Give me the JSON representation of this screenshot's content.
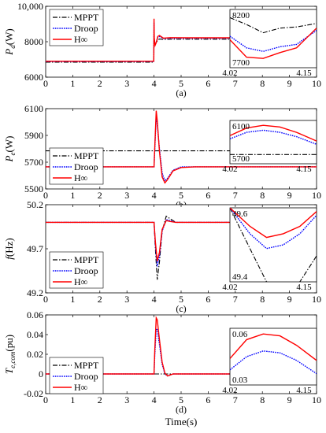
{
  "x_axis": {
    "label": "Time(s)",
    "ticks": [
      "0",
      "1",
      "2",
      "3",
      "4",
      "5",
      "6",
      "7",
      "8",
      "9",
      "10"
    ]
  },
  "chart_data": [
    {
      "type": "line",
      "panel_label": "(a)",
      "ylabel": "P_d(W)",
      "ylabel_main": "P",
      "ylabel_sub": "d",
      "ylabel_tail": "(W)",
      "xlim": [
        0,
        10
      ],
      "ylim": [
        6000,
        10000
      ],
      "yticks": [
        "6000",
        "8000",
        "10,000"
      ],
      "ytick_values": [
        6000,
        8000,
        10000
      ],
      "legend": {
        "placement": "top-left",
        "entries": [
          "MPPT",
          "Droop",
          "H∞"
        ]
      },
      "series": [
        {
          "name": "MPPT",
          "style": "dash-dot",
          "color": "#000000",
          "x": [
            0,
            3.99,
            4.0,
            4.01,
            4.04,
            4.08,
            4.14,
            4.2,
            4.35,
            4.6,
            5.2,
            10
          ],
          "y": [
            6850,
            6850,
            8500,
            8000,
            7880,
            7950,
            8100,
            8150,
            8130,
            8140,
            8140,
            8140
          ]
        },
        {
          "name": "Droop",
          "style": "dotted",
          "color": "#0000ff",
          "x": [
            0,
            3.99,
            4.0,
            4.01,
            4.04,
            4.08,
            4.14,
            4.2,
            4.35,
            4.6,
            5.2,
            10
          ],
          "y": [
            6880,
            6880,
            9100,
            8150,
            7850,
            7950,
            8250,
            8300,
            8180,
            8200,
            8200,
            8200
          ]
        },
        {
          "name": "H∞",
          "style": "solid",
          "color": "#ff0000",
          "x": [
            0,
            3.99,
            4.0,
            4.01,
            4.04,
            4.08,
            4.14,
            4.2,
            4.35,
            4.6,
            5.2,
            10
          ],
          "y": [
            6900,
            6900,
            9300,
            8200,
            7800,
            7950,
            8300,
            8350,
            8200,
            8230,
            8220,
            8220
          ]
        }
      ],
      "inset": {
        "xlim_labels": [
          "4.02",
          "4.15"
        ],
        "ylim_labels": [
          "7700",
          "8200"
        ],
        "xlim": [
          4.02,
          4.15
        ],
        "ylim": [
          7700,
          8200
        ],
        "series": [
          {
            "name": "MPPT",
            "x": [
              4.02,
              4.045,
              4.07,
              4.095,
              4.12,
              4.15
            ],
            "y": [
              8130,
              8070,
              8000,
              8040,
              8050,
              8080
            ]
          },
          {
            "name": "Droop",
            "x": [
              4.02,
              4.045,
              4.07,
              4.095,
              4.12,
              4.15
            ],
            "y": [
              7970,
              7870,
              7840,
              7880,
              7900,
              8020
            ]
          },
          {
            "name": "H∞",
            "x": [
              4.02,
              4.045,
              4.07,
              4.095,
              4.12,
              4.15
            ],
            "y": [
              7940,
              7790,
              7780,
              7830,
              7870,
              8040
            ]
          }
        ]
      }
    },
    {
      "type": "line",
      "panel_label": "(b)",
      "ylabel": "P_e(W)",
      "ylabel_main": "P",
      "ylabel_sub": "e",
      "ylabel_tail": "(W)",
      "xlim": [
        0,
        10
      ],
      "ylim": [
        5500,
        6100
      ],
      "yticks": [
        "5500",
        "5700",
        "5900",
        "6100"
      ],
      "ytick_values": [
        5500,
        5700,
        5900,
        6100
      ],
      "legend": {
        "placement": "top-left",
        "entries": [
          "MPPT",
          "Droop",
          "H∞"
        ]
      },
      "series": [
        {
          "name": "MPPT",
          "style": "dash-dot",
          "color": "#000000",
          "x": [
            0,
            10
          ],
          "y": [
            5785,
            5785
          ]
        },
        {
          "name": "Droop",
          "style": "dotted",
          "color": "#0000ff",
          "x": [
            0,
            4.0,
            4.03,
            4.08,
            4.12,
            4.2,
            4.3,
            4.4,
            4.5,
            4.7,
            5.0,
            5.5,
            6.0,
            10
          ],
          "y": [
            5665,
            5665,
            5800,
            6050,
            5980,
            5800,
            5620,
            5560,
            5580,
            5640,
            5665,
            5665,
            5665,
            5665
          ]
        },
        {
          "name": "H∞",
          "style": "solid",
          "color": "#ff0000",
          "x": [
            0,
            4.0,
            4.03,
            4.08,
            4.12,
            4.2,
            4.3,
            4.4,
            4.5,
            4.7,
            5.0,
            5.5,
            6.0,
            10
          ],
          "y": [
            5665,
            5665,
            5820,
            6085,
            6010,
            5780,
            5590,
            5545,
            5570,
            5635,
            5660,
            5665,
            5665,
            5665
          ]
        }
      ],
      "inset": {
        "xlim_labels": [
          "4.02",
          "4.15"
        ],
        "ylim_labels": [
          "5700",
          "6100"
        ],
        "xlim": [
          4.02,
          4.15
        ],
        "ylim": [
          5700,
          6100
        ],
        "series": [
          {
            "name": "MPPT",
            "x": [
              4.02,
              4.15
            ],
            "y": [
              5785,
              5785
            ]
          },
          {
            "name": "Droop",
            "x": [
              4.02,
              4.045,
              4.07,
              4.095,
              4.12,
              4.15
            ],
            "y": [
              5930,
              5990,
              6010,
              5990,
              5950,
              5880
            ]
          },
          {
            "name": "H∞",
            "x": [
              4.02,
              4.045,
              4.07,
              4.095,
              4.12,
              4.15
            ],
            "y": [
              5960,
              6030,
              6055,
              6040,
              5990,
              5910
            ]
          }
        ]
      }
    },
    {
      "type": "line",
      "panel_label": "(c)",
      "ylabel": "f(Hz)",
      "ylabel_main": "f",
      "ylabel_sub": "",
      "ylabel_tail": "(Hz)",
      "xlim": [
        0,
        10
      ],
      "ylim": [
        49.2,
        50.2
      ],
      "yticks": [
        "49.2",
        "49.7",
        "50.2"
      ],
      "ytick_values": [
        49.2,
        49.7,
        50.2
      ],
      "legend": {
        "placement": "bottom-left",
        "entries": [
          "MPPT",
          "Droop",
          "H∞"
        ]
      },
      "series": [
        {
          "name": "MPPT",
          "style": "dash-dot",
          "color": "#000000",
          "x": [
            0,
            4.0,
            4.05,
            4.12,
            4.2,
            4.3,
            4.45,
            4.6,
            4.8,
            5.0,
            10
          ],
          "y": [
            50.0,
            50.0,
            49.7,
            49.35,
            49.55,
            49.9,
            50.07,
            50.04,
            50.0,
            50.0,
            50.0
          ]
        },
        {
          "name": "Droop",
          "style": "dotted",
          "color": "#0000ff",
          "x": [
            0,
            4.0,
            4.05,
            4.12,
            4.2,
            4.3,
            4.45,
            4.6,
            4.8,
            5.0,
            10
          ],
          "y": [
            50.0,
            50.0,
            49.75,
            49.5,
            49.62,
            49.9,
            50.03,
            50.02,
            50.0,
            50.0,
            50.0
          ]
        },
        {
          "name": "H∞",
          "style": "solid",
          "color": "#ff0000",
          "x": [
            0,
            4.0,
            4.05,
            4.12,
            4.2,
            4.3,
            4.45,
            4.6,
            4.8,
            5.0,
            10
          ],
          "y": [
            50.0,
            50.0,
            49.78,
            49.56,
            49.66,
            49.92,
            50.02,
            50.01,
            50.0,
            50.0,
            50.0
          ]
        }
      ],
      "inset": {
        "xlim_labels": [
          "4.02",
          "4.15"
        ],
        "ylim_labels": [
          "49.4",
          "49.6"
        ],
        "xlim": [
          4.02,
          4.15
        ],
        "ylim": [
          49.4,
          49.6
        ],
        "series": [
          {
            "name": "MPPT",
            "x": [
              4.02,
              4.05,
              4.075,
              4.1,
              4.125,
              4.15
            ],
            "y": [
              49.6,
              49.49,
              49.4,
              49.38,
              49.4,
              49.47
            ]
          },
          {
            "name": "Droop",
            "x": [
              4.02,
              4.05,
              4.075,
              4.1,
              4.125,
              4.15
            ],
            "y": [
              49.6,
              49.53,
              49.49,
              49.5,
              49.53,
              49.58
            ]
          },
          {
            "name": "H∞",
            "x": [
              4.02,
              4.05,
              4.075,
              4.1,
              4.125,
              4.15
            ],
            "y": [
              49.6,
              49.55,
              49.52,
              49.53,
              49.55,
              49.59
            ]
          }
        ]
      }
    },
    {
      "type": "line",
      "panel_label": "(d)",
      "ylabel": "T_e,com(pu)",
      "ylabel_main": "T",
      "ylabel_sub": "e,com",
      "ylabel_tail": "(pu)",
      "xlim": [
        0,
        10
      ],
      "ylim": [
        -0.02,
        0.06
      ],
      "yticks": [
        "-0.02",
        "0",
        "0.02",
        "0.04",
        "0.06"
      ],
      "ytick_values": [
        -0.02,
        0,
        0.02,
        0.04,
        0.06
      ],
      "legend": {
        "placement": "bottom-left",
        "entries": [
          "MPPT",
          "Droop",
          "H∞"
        ]
      },
      "series": [
        {
          "name": "MPPT",
          "style": "dash-dot",
          "color": "#000000",
          "x": [
            0,
            10
          ],
          "y": [
            0,
            0
          ]
        },
        {
          "name": "Droop",
          "style": "dotted",
          "color": "#0000ff",
          "x": [
            0,
            4.0,
            4.03,
            4.08,
            4.12,
            4.2,
            4.3,
            4.4,
            4.5,
            4.7,
            5.0,
            10
          ],
          "y": [
            0,
            0,
            0.02,
            0.046,
            0.045,
            0.03,
            0.01,
            0.0,
            -0.002,
            0.0,
            0.0,
            0.0
          ]
        },
        {
          "name": "H∞",
          "style": "solid",
          "color": "#ff0000",
          "x": [
            0,
            4.0,
            4.03,
            4.08,
            4.12,
            4.2,
            4.3,
            4.4,
            4.5,
            4.7,
            5.0,
            10
          ],
          "y": [
            0,
            0,
            0.025,
            0.057,
            0.055,
            0.035,
            0.012,
            0.001,
            -0.002,
            0.0,
            0.0,
            0.0
          ]
        }
      ],
      "inset": {
        "xlim_labels": [
          "4.02",
          "4.15"
        ],
        "ylim_labels": [
          "0.03",
          "0.06"
        ],
        "xlim": [
          4.02,
          4.15
        ],
        "ylim": [
          0.03,
          0.06
        ],
        "series": [
          {
            "name": "Droop",
            "x": [
              4.02,
              4.045,
              4.07,
              4.095,
              4.12,
              4.15
            ],
            "y": [
              0.038,
              0.045,
              0.048,
              0.047,
              0.043,
              0.036
            ]
          },
          {
            "name": "H∞",
            "x": [
              4.02,
              4.045,
              4.07,
              4.095,
              4.12,
              4.15
            ],
            "y": [
              0.044,
              0.054,
              0.057,
              0.056,
              0.051,
              0.043
            ]
          }
        ]
      }
    }
  ]
}
